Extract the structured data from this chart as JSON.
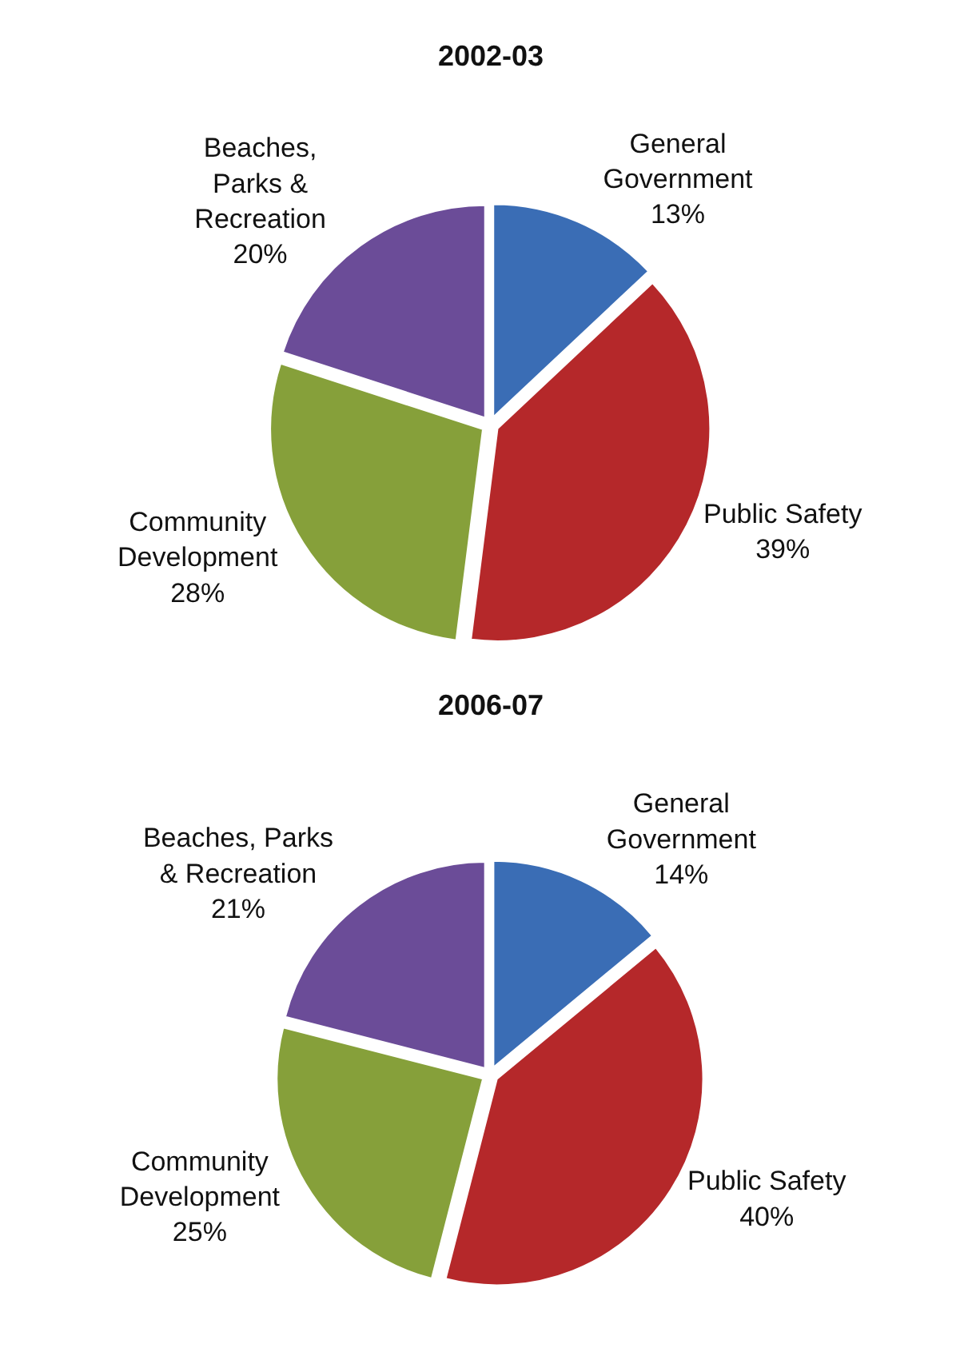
{
  "chart_data": [
    {
      "type": "pie",
      "title": "2002-03",
      "categories": [
        "General\nGovernment",
        "Public Safety",
        "Community\nDevelopment",
        "Beaches,\nParks &\nRecreation"
      ],
      "values": [
        13,
        39,
        28,
        20
      ],
      "value_labels": [
        "13%",
        "39%",
        "28%",
        "20%"
      ],
      "colors": [
        "#3a6db5",
        "#b5282a",
        "#86a03a",
        "#6b4c98"
      ]
    },
    {
      "type": "pie",
      "title": "2006-07",
      "categories": [
        "General\nGovernment",
        "Public Safety",
        "Community\nDevelopment",
        "Beaches, Parks\n& Recreation"
      ],
      "values": [
        14,
        40,
        25,
        21
      ],
      "value_labels": [
        "14%",
        "40%",
        "25%",
        "21%"
      ],
      "colors": [
        "#3a6db5",
        "#b5282a",
        "#86a03a",
        "#6b4c98"
      ]
    }
  ]
}
